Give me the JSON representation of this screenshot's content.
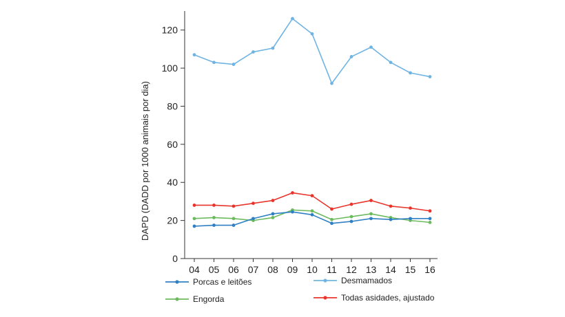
{
  "chart_data": {
    "type": "line",
    "title": "",
    "xlabel": "",
    "ylabel": "DAPD (DADD por 1000 animais por dia)",
    "categories": [
      "04",
      "05",
      "06",
      "07",
      "08",
      "09",
      "10",
      "11",
      "12",
      "13",
      "14",
      "15",
      "16"
    ],
    "ylim": [
      0,
      130
    ],
    "yticks": [
      0,
      20,
      40,
      60,
      80,
      100,
      120
    ],
    "grid": false,
    "legend_position": "bottom",
    "series": [
      {
        "name": "Porcas e leitões",
        "color": "#2e7fc4",
        "values": [
          17,
          17.5,
          17.5,
          21,
          23.5,
          24.5,
          23,
          18.5,
          19.5,
          21,
          20.5,
          21,
          21
        ]
      },
      {
        "name": "Desmamados",
        "color": "#6fb4e2",
        "values": [
          107,
          103,
          102,
          108.5,
          110.5,
          126,
          118,
          92,
          106,
          111,
          103,
          97.5,
          95.5
        ]
      },
      {
        "name": "Engorda",
        "color": "#6cba5e",
        "values": [
          21,
          21.5,
          21,
          20,
          21.5,
          25.5,
          25,
          20.5,
          22,
          23.5,
          21.5,
          20,
          19
        ]
      },
      {
        "name": "Todas asidades, ajustado",
        "color": "#e8342a",
        "values": [
          28,
          28,
          27.5,
          29,
          30.5,
          34.5,
          33,
          26,
          28.5,
          30.5,
          27.5,
          26.5,
          25
        ]
      }
    ]
  }
}
